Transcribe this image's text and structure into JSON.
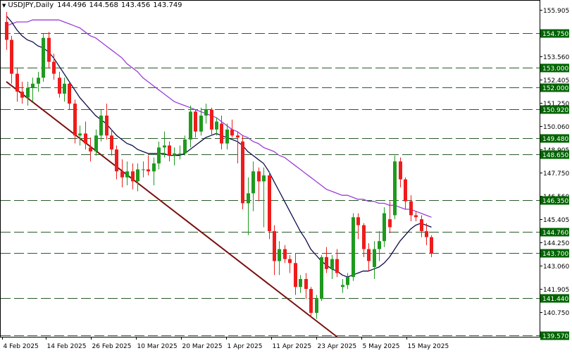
{
  "header": {
    "symbol": "USDJPY,Daily",
    "open": "144.496",
    "high": "144.568",
    "low": "143.456",
    "close": "143.749"
  },
  "colors": {
    "bull": "#1e9a1e",
    "bear": "#ee1c1c",
    "ma_fast": "#0b0b4a",
    "ma_slow": "#9a3ed8",
    "trendline": "#7a1010",
    "hline": "#2a5a2a",
    "label_bg": "#006400",
    "label_text": "#ffffff"
  },
  "chart_data": {
    "type": "candlestick",
    "y_ticks": [
      "155.905",
      "154.750",
      "153.560",
      "152.405",
      "151.250",
      "150.060",
      "148.905",
      "147.750",
      "146.560",
      "145.405",
      "144.250",
      "143.060",
      "141.905",
      "140.750"
    ],
    "x_ticks": [
      "4 Feb 2025",
      "14 Feb 2025",
      "26 Feb 2025",
      "10 Mar 2025",
      "20 Mar 2025",
      "1 Apr 2025",
      "11 Apr 2025",
      "23 Apr 2025",
      "5 May 2025",
      "15 May 2025"
    ],
    "horizontal_levels": [
      "154.750",
      "153.000",
      "152.000",
      "150.920",
      "149.480",
      "148.650",
      "146.350",
      "144.760",
      "143.700",
      "141.440",
      "139.570"
    ],
    "ylim": [
      139.5,
      156.4
    ],
    "candles": [
      [
        155.3,
        155.8,
        153.9,
        154.4
      ],
      [
        154.4,
        154.6,
        152.2,
        152.7
      ],
      [
        152.7,
        153.0,
        151.3,
        151.8
      ],
      [
        151.8,
        152.3,
        151.2,
        151.5
      ],
      [
        151.5,
        152.3,
        151.1,
        152.0
      ],
      [
        152.0,
        152.5,
        151.3,
        152.2
      ],
      [
        152.2,
        152.8,
        151.8,
        152.5
      ],
      [
        152.5,
        154.7,
        152.3,
        154.5
      ],
      [
        154.5,
        154.8,
        153.0,
        153.3
      ],
      [
        153.3,
        153.7,
        152.4,
        152.7
      ],
      [
        152.5,
        152.8,
        151.5,
        151.7
      ],
      [
        151.7,
        152.5,
        151.3,
        152.2
      ],
      [
        152.2,
        152.3,
        150.9,
        151.2
      ],
      [
        151.2,
        151.4,
        149.2,
        149.6
      ],
      [
        149.6,
        150.1,
        149.1,
        149.7
      ],
      [
        149.7,
        150.3,
        148.9,
        149.2
      ],
      [
        149.0,
        149.5,
        148.3,
        148.8
      ],
      [
        148.8,
        149.9,
        148.6,
        149.6
      ],
      [
        149.6,
        150.9,
        149.3,
        150.6
      ],
      [
        150.6,
        151.2,
        149.4,
        149.6
      ],
      [
        149.6,
        149.9,
        148.6,
        148.9
      ],
      [
        148.9,
        149.1,
        147.4,
        147.8
      ],
      [
        147.8,
        148.4,
        147.0,
        147.5
      ],
      [
        147.5,
        148.3,
        147.1,
        147.8
      ],
      [
        147.8,
        148.2,
        146.9,
        147.3
      ],
      [
        147.3,
        148.2,
        146.8,
        147.9
      ],
      [
        147.9,
        148.3,
        147.5,
        147.9
      ],
      [
        147.9,
        148.6,
        147.6,
        147.8
      ],
      [
        147.8,
        148.5,
        147.1,
        148.2
      ],
      [
        148.2,
        149.3,
        147.9,
        149.0
      ],
      [
        149.0,
        149.8,
        148.5,
        149.1
      ],
      [
        149.1,
        149.3,
        148.3,
        148.6
      ],
      [
        148.6,
        149.0,
        148.1,
        148.7
      ],
      [
        148.7,
        149.1,
        148.4,
        148.7
      ],
      [
        148.7,
        149.6,
        148.6,
        149.4
      ],
      [
        149.4,
        151.1,
        149.0,
        150.8
      ],
      [
        150.8,
        150.9,
        149.5,
        149.8
      ],
      [
        149.8,
        151.0,
        149.6,
        150.6
      ],
      [
        150.6,
        151.2,
        150.2,
        150.9
      ],
      [
        150.9,
        151.0,
        149.6,
        149.9
      ],
      [
        149.9,
        150.5,
        149.6,
        150.3
      ],
      [
        150.2,
        150.6,
        148.9,
        149.2
      ],
      [
        149.2,
        150.2,
        148.9,
        149.9
      ],
      [
        149.9,
        150.4,
        149.5,
        149.6
      ],
      [
        149.6,
        149.8,
        148.2,
        149.5
      ],
      [
        149.3,
        149.6,
        145.9,
        146.2
      ],
      [
        146.2,
        147.5,
        144.6,
        146.7
      ],
      [
        146.7,
        148.3,
        145.8,
        147.8
      ],
      [
        147.8,
        148.0,
        146.3,
        147.3
      ],
      [
        147.3,
        148.0,
        145.0,
        147.6
      ],
      [
        147.6,
        147.8,
        144.4,
        144.8
      ],
      [
        144.8,
        145.1,
        142.6,
        143.3
      ],
      [
        143.3,
        144.3,
        142.6,
        143.9
      ],
      [
        143.9,
        144.1,
        143.2,
        143.4
      ],
      [
        143.4,
        143.6,
        142.7,
        143.2
      ],
      [
        143.2,
        143.7,
        141.6,
        142.0
      ],
      [
        142.0,
        142.6,
        141.7,
        142.4
      ],
      [
        142.4,
        142.7,
        141.4,
        141.9
      ],
      [
        141.9,
        142.0,
        140.5,
        140.7
      ],
      [
        140.7,
        141.6,
        140.4,
        141.4
      ],
      [
        141.4,
        143.6,
        141.3,
        143.5
      ],
      [
        143.5,
        144.0,
        142.7,
        142.9
      ],
      [
        142.9,
        143.6,
        142.4,
        143.4
      ],
      [
        143.4,
        143.9,
        142.5,
        142.7
      ],
      [
        142.0,
        142.4,
        141.7,
        142.1
      ],
      [
        142.1,
        142.7,
        141.9,
        142.5
      ],
      [
        142.5,
        145.7,
        142.3,
        145.5
      ],
      [
        145.5,
        145.7,
        144.4,
        145.1
      ],
      [
        145.1,
        145.2,
        143.5,
        143.9
      ],
      [
        143.9,
        144.2,
        142.8,
        143.3
      ],
      [
        143.0,
        144.3,
        142.4,
        143.9
      ],
      [
        143.9,
        144.8,
        143.3,
        144.3
      ],
      [
        144.3,
        146.0,
        144.0,
        145.7
      ],
      [
        145.4,
        146.3,
        144.7,
        145.0
      ],
      [
        145.6,
        148.6,
        145.4,
        148.3
      ],
      [
        148.3,
        148.5,
        147.0,
        147.4
      ],
      [
        147.4,
        147.5,
        145.9,
        146.3
      ],
      [
        146.3,
        146.6,
        145.3,
        145.6
      ],
      [
        145.6,
        145.8,
        145.3,
        145.5
      ],
      [
        145.4,
        145.6,
        144.5,
        144.8
      ],
      [
        144.8,
        145.2,
        144.1,
        144.5
      ],
      [
        144.5,
        144.6,
        143.5,
        143.7
      ]
    ],
    "ma_fast": [
      155.6,
      155.3,
      154.9,
      154.6,
      154.4,
      154.3,
      154.1,
      154.0,
      153.8,
      153.5,
      153.1,
      152.7,
      152.3,
      151.9,
      151.5,
      151.2,
      150.9,
      150.6,
      150.4,
      150.2,
      149.9,
      149.6,
      149.4,
      149.2,
      149.1,
      148.9,
      148.8,
      148.7,
      148.7,
      148.7,
      148.7,
      148.6,
      148.6,
      148.6,
      148.7,
      148.9,
      149.1,
      149.3,
      149.5,
      149.6,
      149.7,
      149.6,
      149.5,
      149.4,
      149.3,
      149.1,
      148.8,
      148.6,
      148.4,
      148.2,
      147.8,
      147.3,
      146.8,
      146.3,
      145.8,
      145.3,
      144.8,
      144.4,
      143.9,
      143.6,
      143.3,
      143.1,
      142.9,
      142.8,
      142.6,
      142.5,
      142.6,
      142.7,
      142.8,
      142.8,
      142.9,
      143.0,
      143.2,
      143.5,
      143.9,
      144.3,
      144.6,
      144.9,
      145.1,
      145.2,
      145.1,
      145.0
    ],
    "ma_slow": [
      155.1,
      155.2,
      155.3,
      155.3,
      155.3,
      155.4,
      155.4,
      155.4,
      155.4,
      155.4,
      155.4,
      155.3,
      155.2,
      155.1,
      155.0,
      154.8,
      154.6,
      154.5,
      154.3,
      154.1,
      153.9,
      153.7,
      153.5,
      153.2,
      153.0,
      152.8,
      152.5,
      152.3,
      152.1,
      151.9,
      151.7,
      151.5,
      151.3,
      151.2,
      151.1,
      151.0,
      150.9,
      150.8,
      150.7,
      150.6,
      150.5,
      150.3,
      150.1,
      149.9,
      149.8,
      149.6,
      149.5,
      149.3,
      149.2,
      149.0,
      148.9,
      148.8,
      148.6,
      148.5,
      148.3,
      148.1,
      147.9,
      147.7,
      147.5,
      147.3,
      147.1,
      146.9,
      146.8,
      146.7,
      146.6,
      146.6,
      146.5,
      146.4,
      146.4,
      146.3,
      146.3,
      146.2,
      146.2,
      146.1,
      146.1,
      146.0,
      145.9,
      145.9,
      145.8,
      145.7,
      145.6,
      145.5
    ],
    "trendline": [
      [
        0,
        152.3
      ],
      [
        63,
        139.5
      ]
    ]
  }
}
